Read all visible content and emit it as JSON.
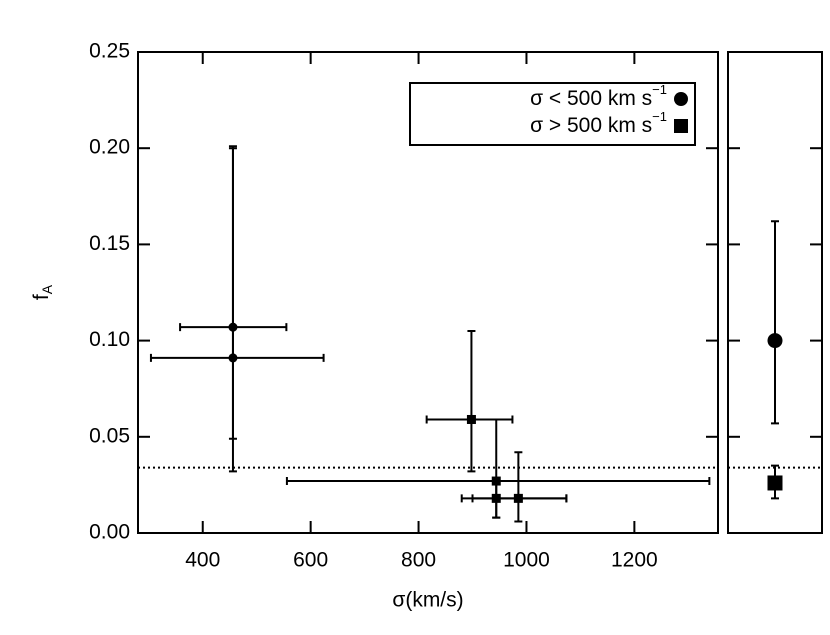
{
  "chart_data": [
    {
      "type": "scatter",
      "xlabel": "σ(km/s)",
      "ylabel": "f",
      "ylabel_sub": "A",
      "xlim": [
        280,
        1355
      ],
      "xticks": [
        400,
        600,
        800,
        1000,
        1200
      ],
      "ylim": [
        0,
        0.25
      ],
      "yticks": [
        {
          "value": 0,
          "label": "0.00"
        },
        0.05,
        {
          "value": 0.1,
          "label": "0.10"
        },
        0.15,
        {
          "value": 0.2,
          "label": "0.20"
        },
        0.25
      ],
      "reference_line": 0.034,
      "legend": "upper right",
      "series": [
        {
          "name": "σ < 500 km s",
          "name_sup": "−1",
          "marker": "circle",
          "color": "#000000",
          "x": [
            456,
            456
          ],
          "values": [
            0.107,
            0.091
          ],
          "x_low": [
            358,
            304
          ],
          "x_high": [
            555,
            624
          ],
          "y_low": [
            0.049,
            0.032
          ],
          "y_high": [
            0.201,
            0.2
          ]
        },
        {
          "name": "σ > 500 km s",
          "name_sup": "−1",
          "marker": "square",
          "color": "#000000",
          "x": [
            898,
            944,
            944,
            985
          ],
          "values": [
            0.059,
            0.027,
            0.018,
            0.018
          ],
          "x_low": [
            815,
            556,
            880,
            900
          ],
          "x_high": [
            974,
            1339,
            1074,
            1074
          ],
          "y_low": [
            0.032,
            0.008,
            0.008,
            0.006
          ],
          "y_high": [
            0.105,
            0.059,
            0.027,
            0.042
          ]
        }
      ]
    },
    {
      "type": "scatter",
      "ylim": [
        0,
        0.25
      ],
      "yticks": [
        0,
        0.05,
        0.1,
        0.15,
        0.2,
        0.25
      ],
      "reference_line": 0.034,
      "series": [
        {
          "marker": "circle",
          "color": "#000000",
          "values": [
            0.1
          ],
          "y_low": [
            0.057
          ],
          "y_high": [
            0.162
          ]
        },
        {
          "marker": "square",
          "color": "#000000",
          "values": [
            0.026
          ],
          "y_low": [
            0.018
          ],
          "y_high": [
            0.035
          ]
        }
      ]
    }
  ]
}
